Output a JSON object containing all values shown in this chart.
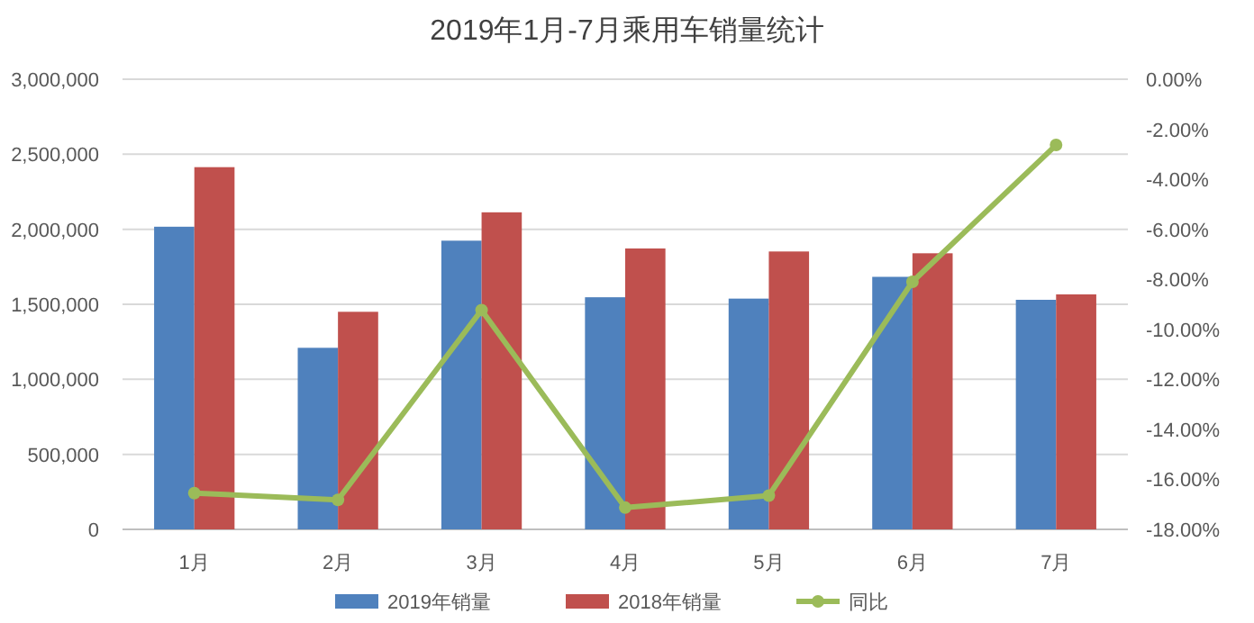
{
  "chart_data": {
    "type": "bar",
    "title": "2019年1月-7月乘用车销量统计",
    "categories": [
      "1月",
      "2月",
      "3月",
      "4月",
      "5月",
      "6月",
      "7月"
    ],
    "series": [
      {
        "name": "2019年销量",
        "color": "#4f81bd",
        "values": [
          2017000,
          1210000,
          1924000,
          1547000,
          1538000,
          1683000,
          1530000
        ]
      },
      {
        "name": "2018年销量",
        "color": "#c0504d",
        "values": [
          2414000,
          1450000,
          2113000,
          1872000,
          1852000,
          1840000,
          1566000
        ]
      },
      {
        "name": "同比",
        "type": "line",
        "axis": "y2",
        "color": "#9bbb59",
        "marker": "circle",
        "values": [
          -16.55,
          -16.82,
          -9.23,
          -17.13,
          -16.65,
          -8.1,
          -2.63
        ]
      }
    ],
    "ylim": [
      0,
      3000000
    ],
    "yticks": [
      {
        "value": 0,
        "label": "0"
      },
      {
        "value": 500000,
        "label": "500,000"
      },
      {
        "value": 1000000,
        "label": "1,000,000"
      },
      {
        "value": 1500000,
        "label": "1,500,000"
      },
      {
        "value": 2000000,
        "label": "2,000,000"
      },
      {
        "value": 2500000,
        "label": "2,500,000"
      },
      {
        "value": 3000000,
        "label": "3,000,000"
      }
    ],
    "y2lim": [
      -18,
      0
    ],
    "y2ticks": [
      {
        "value": 0,
        "label": "0.00%"
      },
      {
        "value": -2,
        "label": "-2.00%"
      },
      {
        "value": -4,
        "label": "-4.00%"
      },
      {
        "value": -6,
        "label": "-6.00%"
      },
      {
        "value": -8,
        "label": "-8.00%"
      },
      {
        "value": -10,
        "label": "-10.00%"
      },
      {
        "value": -12,
        "label": "-12.00%"
      },
      {
        "value": -14,
        "label": "-14.00%"
      },
      {
        "value": -16,
        "label": "-16.00%"
      },
      {
        "value": -18,
        "label": "-18.00%"
      }
    ],
    "grid": "y",
    "legend": "bottom"
  }
}
